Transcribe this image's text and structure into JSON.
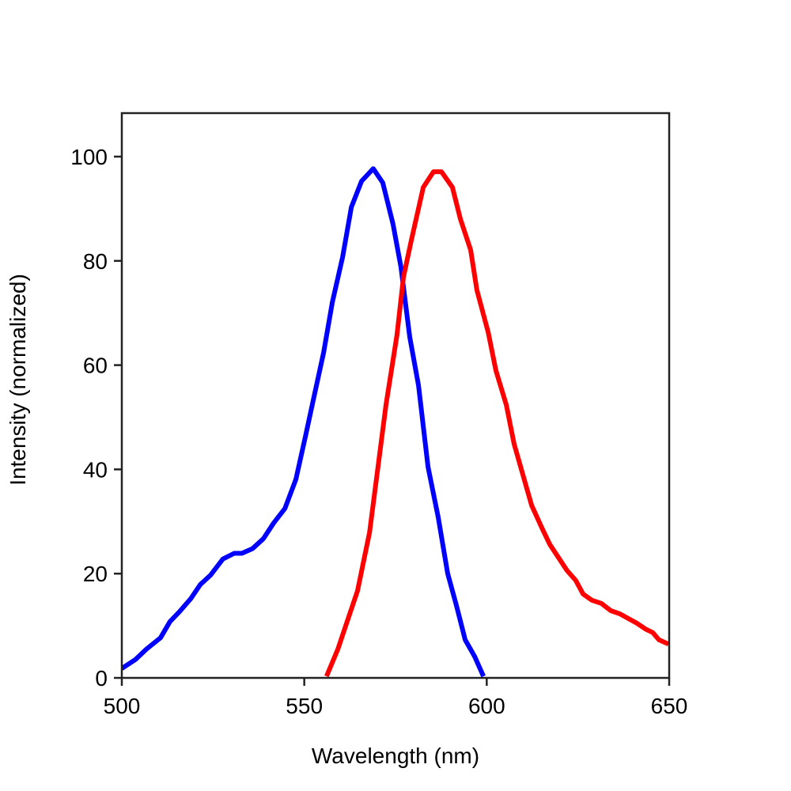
{
  "chart_data": {
    "type": "line",
    "title": "",
    "xlabel": "Wavelength (nm)",
    "ylabel": "Intensity (normalized)",
    "xlim": [
      500,
      650
    ],
    "ylim": [
      0,
      108
    ],
    "xticks": [
      500,
      550,
      600,
      650
    ],
    "yticks": [
      0,
      20,
      40,
      60,
      80,
      100
    ],
    "grid": false,
    "legend": "none",
    "series": [
      {
        "color": "#0000ff",
        "x": [
          500,
          503.7,
          506.7,
          510.6,
          513.2,
          515.8,
          518.9,
          521.5,
          524.3,
          527.7,
          530.8,
          532.9,
          535.8,
          538.8,
          541.6,
          544.7,
          547.7,
          550.3,
          552.5,
          555.3,
          557.7,
          560.5,
          562.9,
          565.7,
          568.9,
          571.5,
          574.3,
          576.5,
          578.9,
          581.3,
          583.9,
          586.7,
          589.3,
          591.7,
          594.1,
          596.7,
          599.1
        ],
        "y": [
          1.8,
          3.5,
          5.5,
          7.7,
          10.8,
          12.7,
          15.2,
          17.9,
          19.7,
          22.8,
          23.9,
          23.9,
          24.8,
          26.7,
          29.7,
          32.5,
          38.1,
          46.3,
          53.4,
          62.4,
          72.1,
          80.7,
          90.3,
          95.3,
          97.7,
          95.0,
          87.1,
          78.8,
          65.4,
          56.1,
          40.5,
          30.8,
          20.0,
          13.9,
          7.3,
          4.1,
          0.3
        ]
      },
      {
        "color": "#ff0000",
        "x": [
          556.1,
          559.2,
          561.6,
          564.6,
          567.9,
          570.2,
          572.4,
          575.4,
          577.2,
          579.3,
          582.6,
          585.4,
          587.6,
          590.6,
          592.8,
          595.6,
          597.3,
          600.4,
          602.5,
          605.4,
          607.5,
          612.3,
          615.1,
          617.3,
          622.0,
          624.4,
          626.4,
          628.8,
          631.4,
          634.0,
          636.4,
          641.1,
          643.7,
          645.5,
          647.2,
          649.8
        ],
        "y": [
          0.3,
          5.5,
          10.5,
          16.7,
          27.9,
          40.5,
          52.4,
          65.7,
          76.9,
          83.8,
          94.1,
          97.1,
          97.1,
          94.1,
          88.0,
          82.1,
          74.4,
          66.3,
          59.0,
          52.3,
          44.9,
          33.1,
          28.8,
          25.6,
          20.6,
          18.7,
          16.1,
          14.9,
          14.3,
          12.9,
          12.3,
          10.5,
          9.3,
          8.7,
          7.3,
          6.5
        ]
      }
    ]
  }
}
